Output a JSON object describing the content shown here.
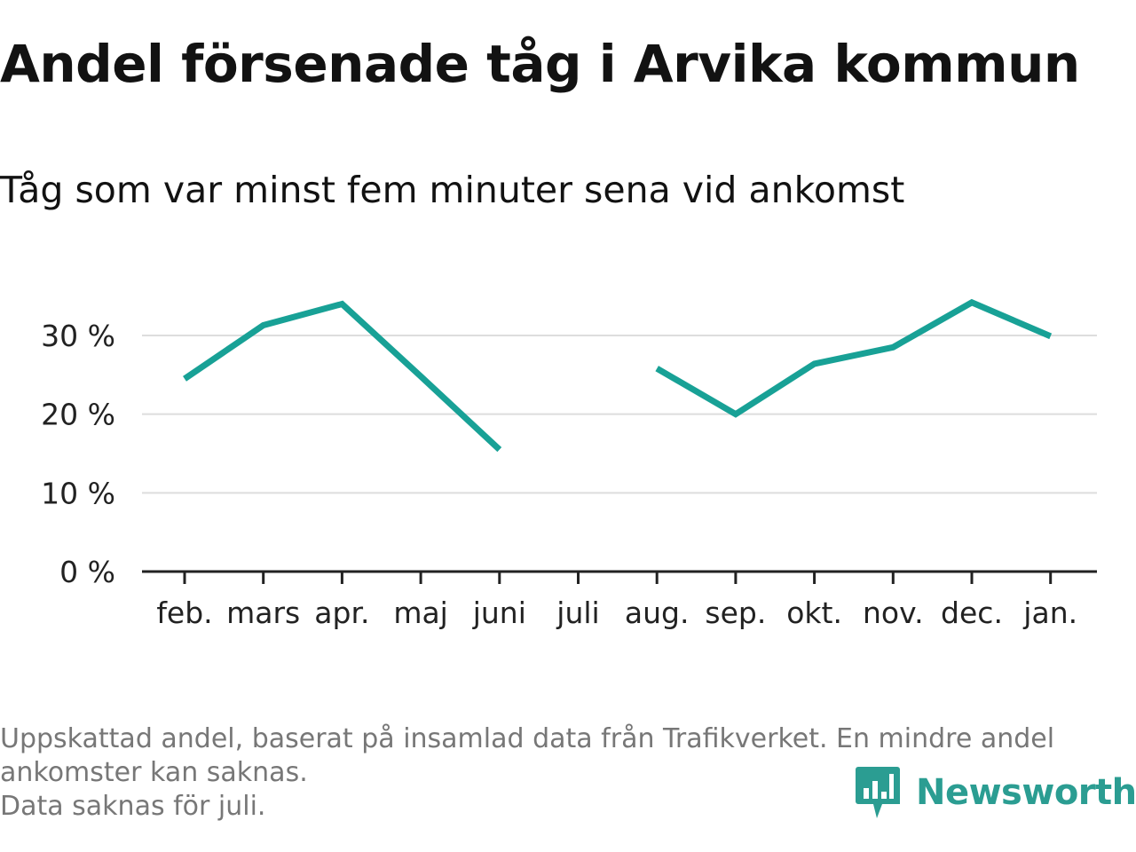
{
  "header": {
    "title": "Andel försenade tåg i Arvika kommun",
    "subtitle": "Tåg som var minst fem minuter sena vid ankomst"
  },
  "chart_data": {
    "type": "line",
    "categories": [
      "feb.",
      "mars",
      "apr.",
      "maj",
      "juni",
      "juli",
      "aug.",
      "sep.",
      "okt.",
      "nov.",
      "dec.",
      "jan."
    ],
    "series": [
      {
        "values": [
          24.5,
          31.3,
          34,
          24.8,
          15.5,
          null,
          25.8,
          20,
          26.4,
          28.5,
          34.2,
          29.9
        ]
      }
    ],
    "ylim": [
      0,
      35
    ],
    "yticks": [
      0,
      10,
      20,
      30
    ],
    "ytick_labels": [
      "0 %",
      "10 %",
      "20 %",
      "30 %"
    ],
    "grid": true,
    "line_color": "#18a196",
    "grid_color": "#dddddd",
    "axis_color": "#222222"
  },
  "footnote": {
    "lines": [
      "Uppskattad andel, baserat på insamlad data från Trafikverket. En mindre andel",
      "ankomster kan saknas.",
      "Data saknas för juli."
    ]
  },
  "brand": {
    "name": "Newsworthy",
    "icon": "newsworthy-logo-icon",
    "color": "#2b9d92"
  }
}
